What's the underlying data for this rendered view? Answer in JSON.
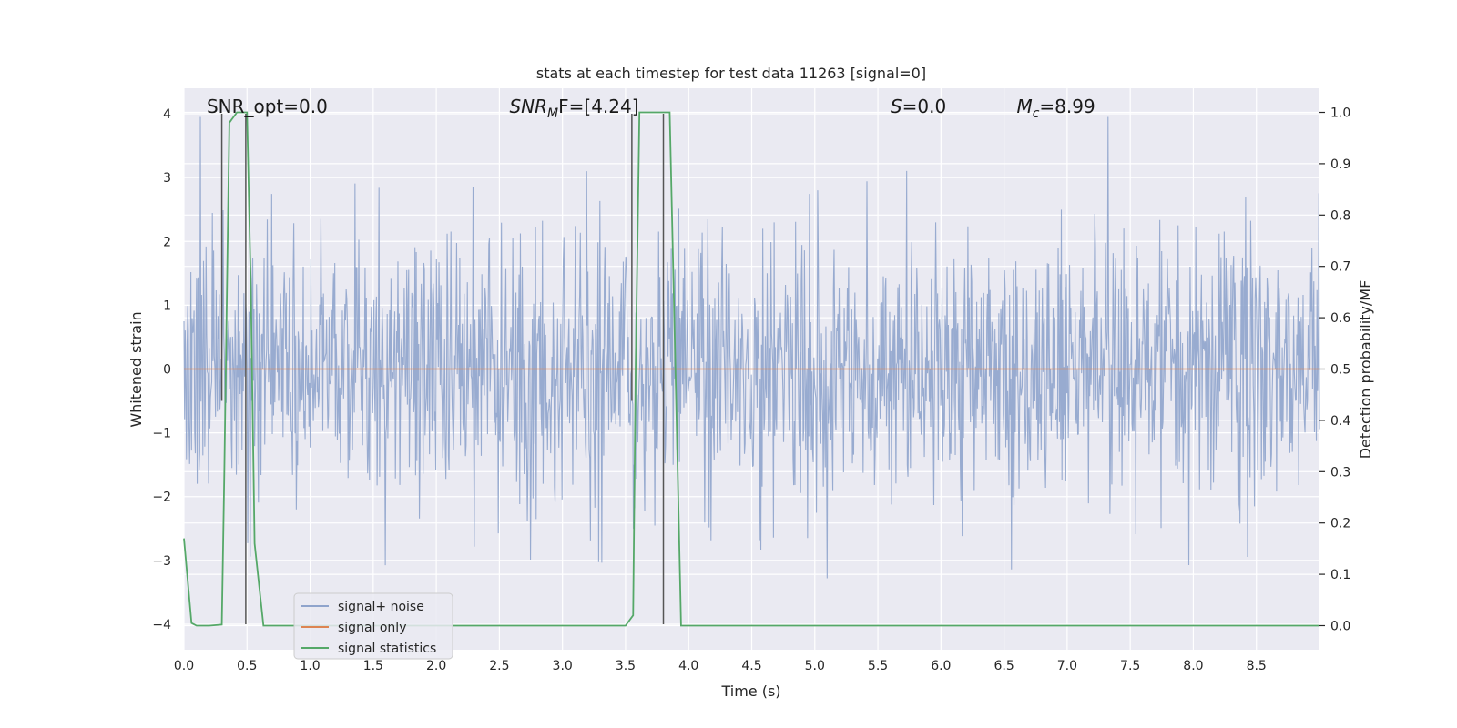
{
  "chart_data": {
    "type": "line",
    "title": "stats at each timestep for test data 11263 [signal=0]",
    "xlabel": "Time (s)",
    "ylabel": "Whitened strain",
    "y2label": "Detection probability/MF",
    "xlim": [
      0,
      9.0
    ],
    "ylim": [
      -4.4,
      4.4
    ],
    "y2lim": [
      -0.047,
      1.047
    ],
    "xticks": [
      "0.0",
      "0.5",
      "1.0",
      "1.5",
      "2.0",
      "2.5",
      "3.0",
      "3.5",
      "4.0",
      "4.5",
      "5.0",
      "5.5",
      "6.0",
      "6.5",
      "7.0",
      "7.5",
      "8.0",
      "8.5"
    ],
    "yticks": [
      "−4",
      "−3",
      "−2",
      "−1",
      "0",
      "1",
      "2",
      "3",
      "4"
    ],
    "y2ticks": [
      "0.0",
      "0.1",
      "0.2",
      "0.3",
      "0.4",
      "0.5",
      "0.6",
      "0.7",
      "0.8",
      "0.9",
      "1.0"
    ],
    "grid": true,
    "legend_position": "lower-left",
    "noise": {
      "n_samples": 1800,
      "seed": 11263,
      "std": 1.05
    },
    "series": [
      {
        "name": "signal+ noise",
        "color": "#8fa4cc"
      },
      {
        "name": "signal only",
        "color": "#dd8452",
        "values": [
          0,
          0
        ]
      },
      {
        "name": "signal statistics",
        "color": "#55a868",
        "x": [
          0.0,
          0.06,
          0.1,
          0.15,
          0.2,
          0.3,
          0.32,
          0.36,
          0.42,
          0.5,
          0.53,
          0.56,
          0.63,
          1.0,
          2.0,
          3.0,
          3.5,
          3.56,
          3.58,
          3.61,
          3.64,
          3.7,
          3.8,
          3.85,
          3.9,
          3.94,
          4.5,
          9.0
        ],
        "values": [
          0.17,
          0.005,
          0.0,
          0.0,
          0.0,
          0.002,
          0.3,
          0.98,
          1.0,
          1.0,
          0.66,
          0.16,
          0.0,
          0.0,
          0.0,
          0.0,
          0.0,
          0.02,
          0.5,
          1.0,
          1.0,
          1.0,
          1.0,
          1.0,
          0.45,
          0.0,
          0.0,
          0.0
        ]
      }
    ],
    "vlines": [
      {
        "x": 0.3,
        "y0": -0.5,
        "y1": 4.0
      },
      {
        "x": 0.49,
        "y0": -4.0,
        "y1": 4.0
      },
      {
        "x": 3.55,
        "y0": -0.5,
        "y1": 4.0
      },
      {
        "x": 3.8,
        "y0": -4.0,
        "y1": 4.0
      }
    ],
    "annotations": [
      {
        "id": "snr-opt",
        "text": "SNR_opt=0.0",
        "x": 0.18
      },
      {
        "id": "snr-mf",
        "base": "SNR",
        "sub": "M",
        "rest": "F=[4.24]",
        "x": 2.58
      },
      {
        "id": "s-stat",
        "italic": "S",
        "rest": "=0.0",
        "x": 5.6
      },
      {
        "id": "mc",
        "base": "M",
        "sub": "c",
        "rest": "=8.99",
        "x": 6.6
      }
    ]
  }
}
